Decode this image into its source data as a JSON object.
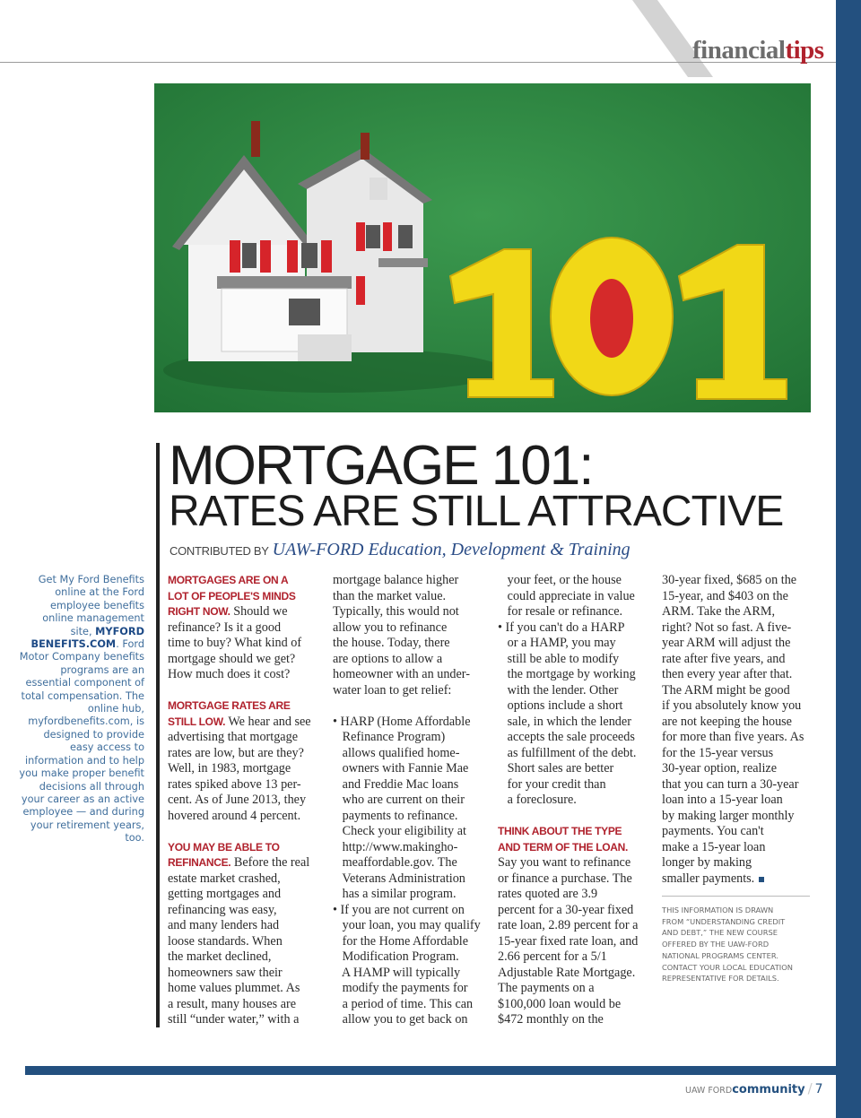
{
  "section": {
    "word1": "financial",
    "word2": "tips"
  },
  "title": {
    "line1": "MORTGAGE 101:",
    "line2": "RATES ARE STILL ATTRACTIVE"
  },
  "byline": {
    "label": "CONTRIBUTED BY",
    "org": "UAW-FORD Education, Development  & Training"
  },
  "sidebar": {
    "pre": "Get My Ford Benefits online at the Ford employee benefits online management site,",
    "link": "MYFORD BENEFITS.COM",
    "post": ". Ford Motor Company benefits programs are an essential component of total compensation. The online hub, myfordbenefits.com, is designed to provide easy access to information and to help you make proper benefit decisions all through your career as an active employee — and during your retirement years, too."
  },
  "columns": [
    [
      {
        "lead": "MORTGAGES ARE ON A"
      },
      {
        "lead": "LOT OF PEOPLE'S MINDS"
      },
      {
        "lead": "RIGHT NOW.",
        "text": " Should we"
      },
      {
        "text": "refinance? Is it a good"
      },
      {
        "text": "time to buy? What kind of"
      },
      {
        "text": "mortgage should we get?"
      },
      {
        "text": "How much does it cost?"
      },
      {
        "text": ""
      },
      {
        "lead": "MORTGAGE RATES ARE"
      },
      {
        "lead": "STILL LOW.",
        "text": " We hear and see"
      },
      {
        "text": "advertising that mortgage"
      },
      {
        "text": "rates are low, but are they?"
      },
      {
        "text": "Well, in 1983, mortgage"
      },
      {
        "text": "rates spiked above 13 per-"
      },
      {
        "text": "cent. As of June 2013, they"
      },
      {
        "text": "hovered around 4 percent."
      },
      {
        "text": ""
      },
      {
        "lead": "YOU MAY BE ABLE TO"
      },
      {
        "lead": "REFINANCE.",
        "text": " Before the real"
      },
      {
        "text": "estate market crashed,"
      },
      {
        "text": "getting mortgages and"
      },
      {
        "text": "refinancing was easy,"
      },
      {
        "text": "and many lenders had"
      },
      {
        "text": "loose standards. When"
      },
      {
        "text": "the market declined,"
      },
      {
        "text": "homeowners saw their"
      },
      {
        "text": "home values plummet. As"
      },
      {
        "text": "a result, many houses are"
      },
      {
        "text": "still “under water,” with a"
      }
    ],
    [
      {
        "text": "mortgage balance higher"
      },
      {
        "text": "than the market value."
      },
      {
        "text": "Typically, this would not"
      },
      {
        "text": "allow you to refinance"
      },
      {
        "text": "the house. Today, there"
      },
      {
        "text": "are options to allow a"
      },
      {
        "text": "homeowner with an under-"
      },
      {
        "text": "water loan to get relief:"
      },
      {
        "text": ""
      },
      {
        "text": "• HARP (Home Affordable"
      },
      {
        "text": "   Refinance Program)"
      },
      {
        "text": "   allows qualified home-"
      },
      {
        "text": "   owners with Fannie Mae"
      },
      {
        "text": "   and Freddie Mac loans"
      },
      {
        "text": "   who are current on their"
      },
      {
        "text": "   payments to refinance."
      },
      {
        "text": "   Check your eligibility at"
      },
      {
        "text": "   http://www.makingho-"
      },
      {
        "text": "   meaffordable.gov. The"
      },
      {
        "text": "   Veterans Administration"
      },
      {
        "text": "   has a similar program."
      },
      {
        "text": "• If you are not current on"
      },
      {
        "text": "   your loan, you may qualify"
      },
      {
        "text": "   for the Home Affordable"
      },
      {
        "text": "   Modification Program."
      },
      {
        "text": "   A HAMP will typically"
      },
      {
        "text": "   modify the payments for"
      },
      {
        "text": "   a period of time. This can"
      },
      {
        "text": "   allow you to get back on"
      }
    ],
    [
      {
        "text": "   your feet, or the house"
      },
      {
        "text": "   could appreciate in value"
      },
      {
        "text": "   for resale or refinance."
      },
      {
        "text": "• If you can't do a HARP"
      },
      {
        "text": "   or a HAMP, you may"
      },
      {
        "text": "   still be able to modify"
      },
      {
        "text": "   the mortgage by working"
      },
      {
        "text": "   with the lender. Other"
      },
      {
        "text": "   options include a short"
      },
      {
        "text": "   sale, in which the lender"
      },
      {
        "text": "   accepts the sale proceeds"
      },
      {
        "text": "   as fulfillment of the debt."
      },
      {
        "text": "   Short sales are better"
      },
      {
        "text": "   for your credit than"
      },
      {
        "text": "   a foreclosure."
      },
      {
        "text": ""
      },
      {
        "lead": "THINK ABOUT THE TYPE"
      },
      {
        "lead": "AND TERM OF THE LOAN."
      },
      {
        "text": "Say you want to refinance"
      },
      {
        "text": "or finance a purchase. The"
      },
      {
        "text": "rates quoted are 3.9"
      },
      {
        "text": "percent for a 30-year fixed"
      },
      {
        "text": "rate loan, 2.89 percent for a"
      },
      {
        "text": "15-year fixed rate loan, and"
      },
      {
        "text": "2.66 percent for a 5/1"
      },
      {
        "text": "Adjustable Rate Mortgage."
      },
      {
        "text": "The payments on a"
      },
      {
        "text": "$100,000 loan would be"
      },
      {
        "text": "$472 monthly on the"
      }
    ],
    [
      {
        "text": "30-year fixed, $685 on the"
      },
      {
        "text": "15-year, and $403 on the"
      },
      {
        "text": "ARM. Take the ARM,"
      },
      {
        "text": "right? Not so fast. A five-"
      },
      {
        "text": "year ARM will adjust the"
      },
      {
        "text": "rate after five years, and"
      },
      {
        "text": "then every year after that."
      },
      {
        "text": "The ARM might be good"
      },
      {
        "text": "if you absolutely know you"
      },
      {
        "text": "are not keeping the house"
      },
      {
        "text": "for more than five years. As"
      },
      {
        "text": "for the 15-year versus"
      },
      {
        "text": "30-year option, realize"
      },
      {
        "text": "that you can turn a 30-year"
      },
      {
        "text": "loan into a 15-year loan"
      },
      {
        "text": "by making larger monthly"
      },
      {
        "text": "payments. You can't"
      },
      {
        "text": "make a 15-year loan"
      },
      {
        "text": "longer by making"
      },
      {
        "text": "smaller payments.",
        "end": true
      }
    ]
  ],
  "note": [
    "THIS INFORMATION IS DRAWN",
    "FROM “UNDERSTANDING CREDIT",
    "AND DEBT,”  THE NEW COURSE",
    "OFFERED BY THE UAW-FORD",
    "NATIONAL PROGRAMS  CENTER.",
    "CONTACT YOUR LOCAL EDUCATION",
    "REPRESENTATIVE FOR DETAILS."
  ],
  "footer": {
    "brand_prefix": "UAW FORD",
    "brand": "community",
    "separator": "/",
    "page": "7"
  },
  "colors": {
    "accent_blue": "#23507f",
    "accent_red": "#b0222d",
    "photo_green": "#2f8a45",
    "numeral_yellow": "#f1d817"
  }
}
